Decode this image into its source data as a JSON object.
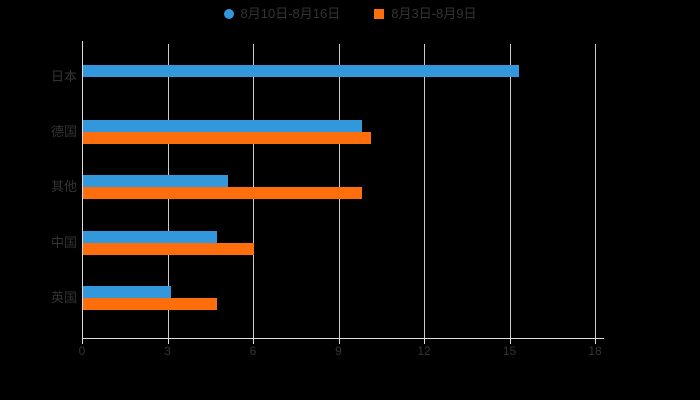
{
  "chart_data": {
    "type": "bar",
    "orientation": "horizontal",
    "background": "#000000",
    "categories": [
      "日本",
      "德国",
      "其他",
      "中国",
      "英国"
    ],
    "series": [
      {
        "name": "8月10日-8月16日",
        "marker": "circle",
        "color": "#3398db",
        "values": [
          15.3,
          9.8,
          5.1,
          4.7,
          3.1
        ]
      },
      {
        "name": "8月3日-8月9日",
        "marker": "square",
        "color": "#ff6e0c",
        "values": [
          null,
          10.1,
          9.8,
          6.0,
          4.7
        ]
      }
    ],
    "xticks": [
      0,
      3,
      6,
      9,
      12,
      15,
      18
    ],
    "xlim": [
      0,
      18.3
    ],
    "grid": true,
    "legend_position": "top-center",
    "title": "",
    "xlabel": "",
    "ylabel": "",
    "axis_color": "#dddddd",
    "grid_color": "#cccccc",
    "text_color": "#333333"
  }
}
